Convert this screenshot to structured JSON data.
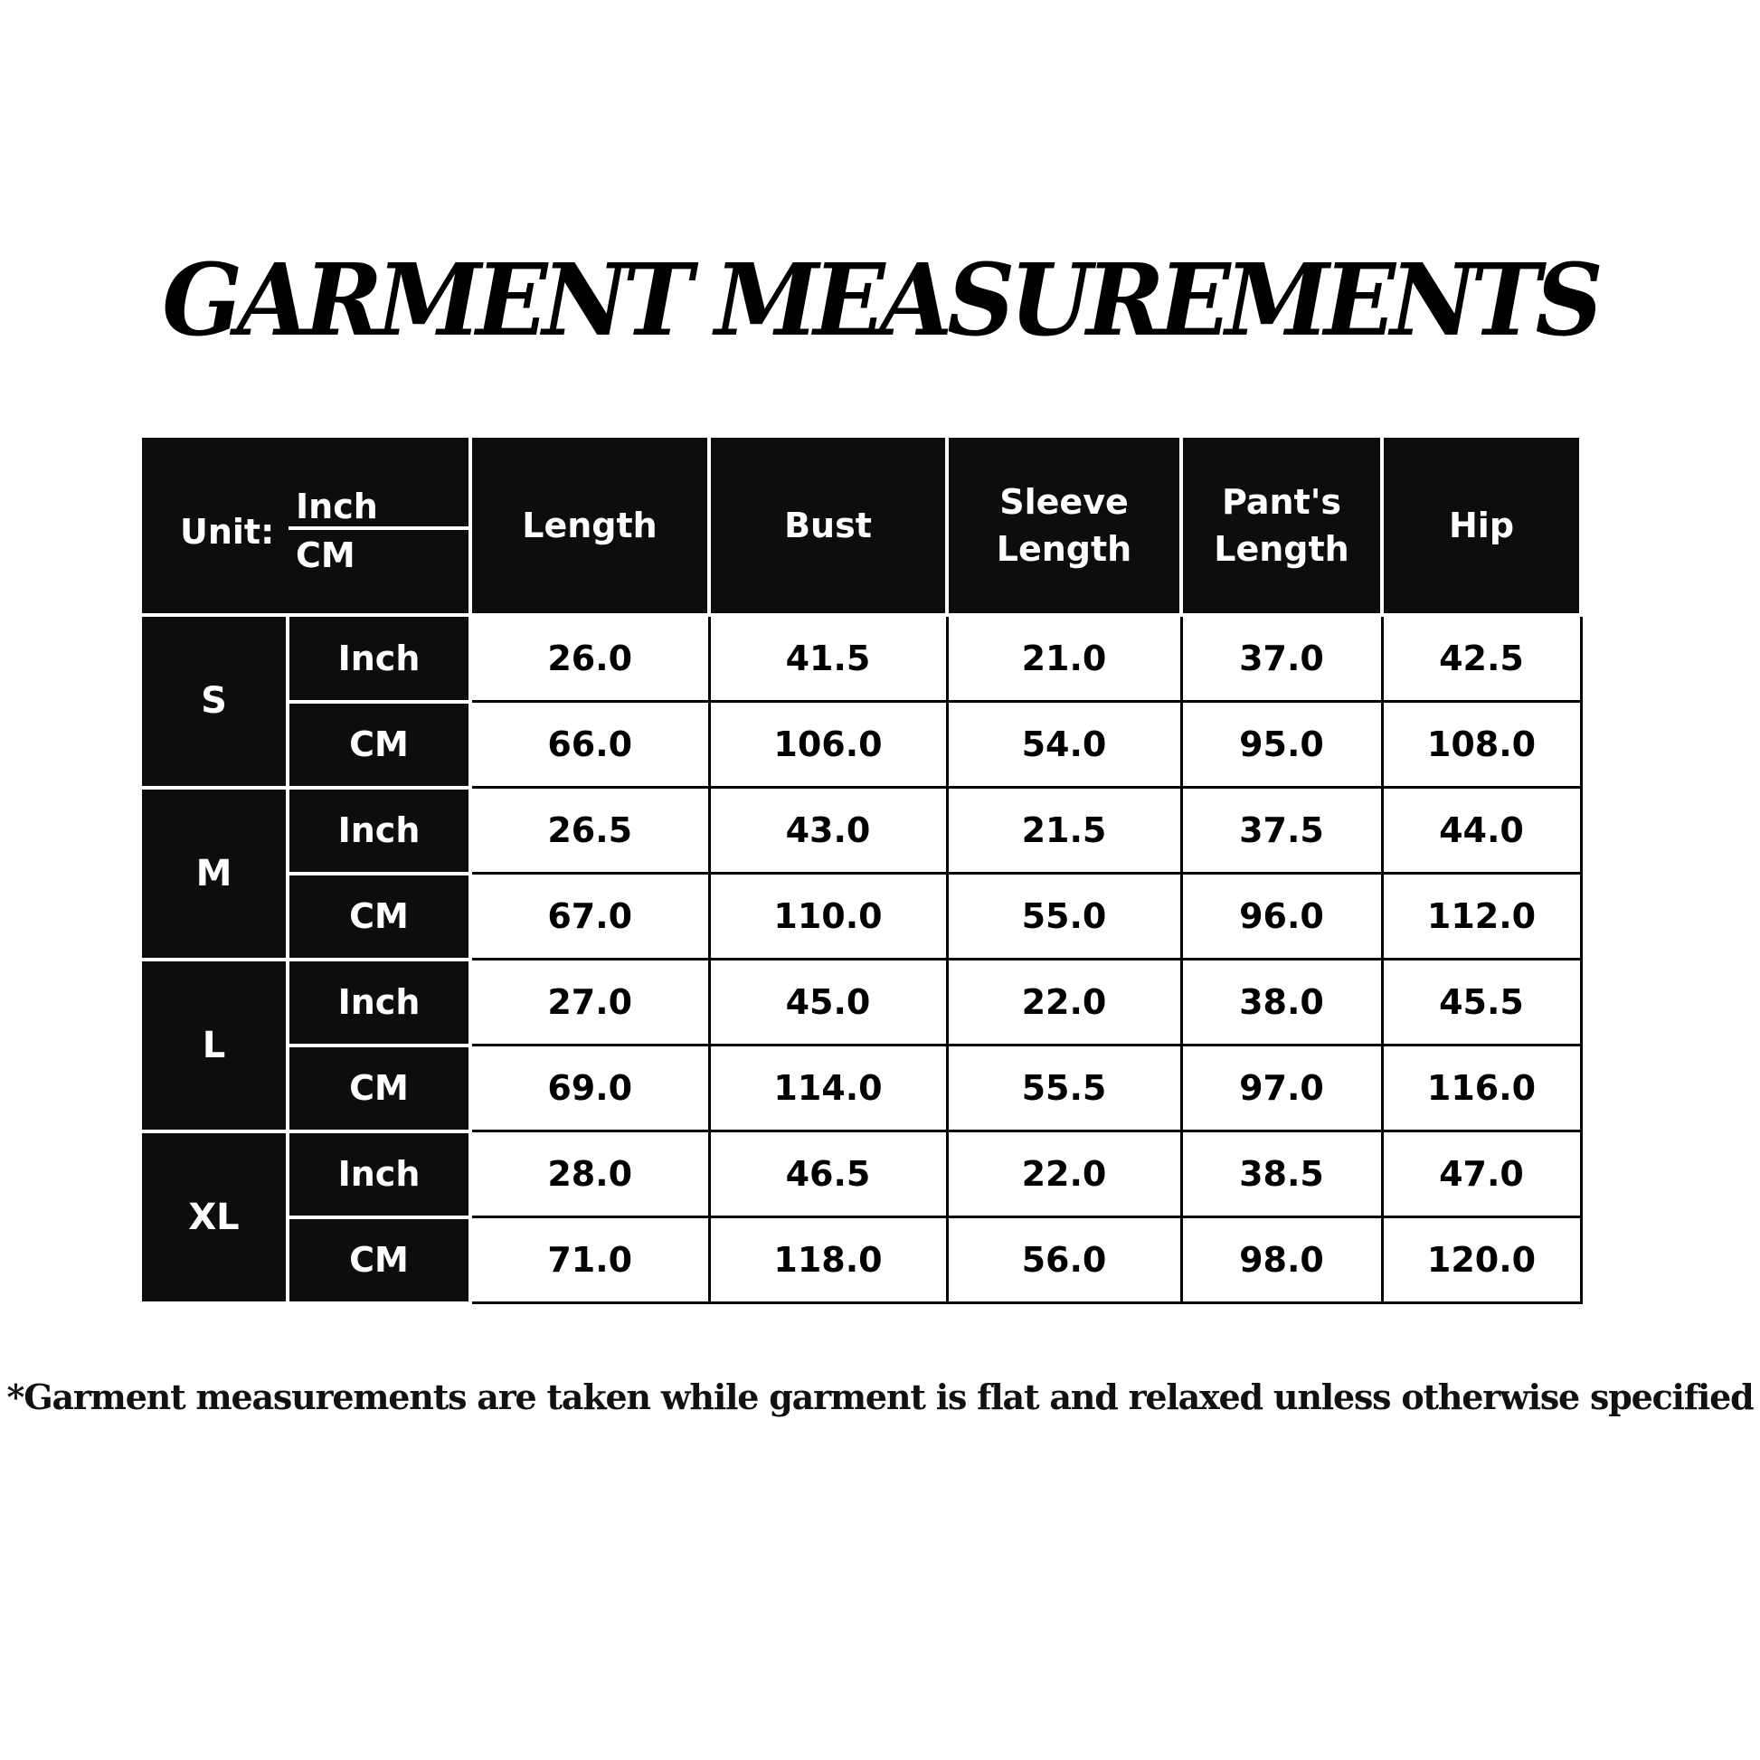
{
  "title": "GARMENT MEASUREMENTS",
  "unit_header": {
    "label": "Unit:",
    "top": "Inch",
    "bottom": "CM"
  },
  "columns": [
    "Length",
    "Bust",
    "Sleeve Length",
    "Pant's Length",
    "Hip"
  ],
  "sizes": [
    {
      "size": "S",
      "rows": [
        {
          "unit": "Inch",
          "values": [
            "26.0",
            "41.5",
            "21.0",
            "37.0",
            "42.5"
          ]
        },
        {
          "unit": "CM",
          "values": [
            "66.0",
            "106.0",
            "54.0",
            "95.0",
            "108.0"
          ]
        }
      ]
    },
    {
      "size": "M",
      "rows": [
        {
          "unit": "Inch",
          "values": [
            "26.5",
            "43.0",
            "21.5",
            "37.5",
            "44.0"
          ]
        },
        {
          "unit": "CM",
          "values": [
            "67.0",
            "110.0",
            "55.0",
            "96.0",
            "112.0"
          ]
        }
      ]
    },
    {
      "size": "L",
      "rows": [
        {
          "unit": "Inch",
          "values": [
            "27.0",
            "45.0",
            "22.0",
            "38.0",
            "45.5"
          ]
        },
        {
          "unit": "CM",
          "values": [
            "69.0",
            "114.0",
            "55.5",
            "97.0",
            "116.0"
          ]
        }
      ]
    },
    {
      "size": "XL",
      "rows": [
        {
          "unit": "Inch",
          "values": [
            "28.0",
            "46.5",
            "22.0",
            "38.5",
            "47.0"
          ]
        },
        {
          "unit": "CM",
          "values": [
            "71.0",
            "118.0",
            "56.0",
            "98.0",
            "120.0"
          ]
        }
      ]
    }
  ],
  "footnote": "*Garment measurements are taken while garment is flat and relaxed unless otherwise specified"
}
